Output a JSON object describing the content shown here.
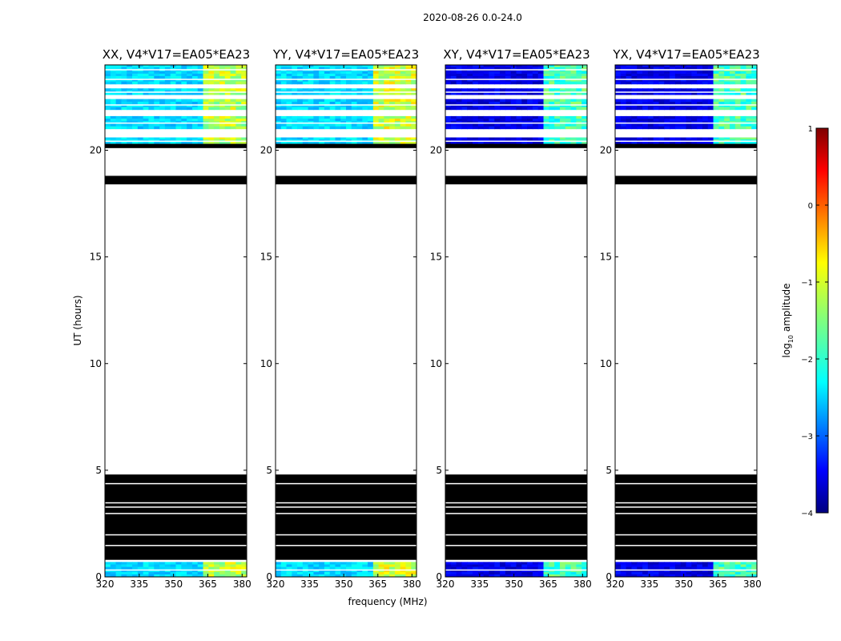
{
  "figure": {
    "suptitle": "2020-08-26 0.0-24.0",
    "ylabel": "UT (hours)",
    "xlabel": "frequency (MHz)",
    "colorbar": {
      "label_prefix": "log",
      "label_sub": "10",
      "label_suffix": " amplitude",
      "ticks": [
        "1",
        "0",
        "−1",
        "−2",
        "−3",
        "−4"
      ]
    },
    "colors": {
      "flagged": "#000000",
      "panel_border": "#000000",
      "background": "#ffffff"
    }
  },
  "chart_data": [
    {
      "type": "heatmap",
      "title": "XX, V4*V17=EA05*EA23",
      "xlabel": "frequency (MHz)",
      "ylabel": "UT (hours)",
      "xlim": [
        320,
        382
      ],
      "ylim": [
        0,
        24
      ],
      "x_ticks": [
        "320",
        "335",
        "350",
        "365",
        "380"
      ],
      "y_ticks": [
        "0",
        "5",
        "10",
        "15",
        "20"
      ],
      "colorbar_range": [
        -4,
        1
      ],
      "baseline_log10_amplitude": -2.3,
      "rfi_band_mhz": [
        363,
        382
      ],
      "rfi_log10_amplitude": -1.2,
      "observed_ut_blocks": [
        [
          0.0,
          0.7
        ],
        [
          20.3,
          20.6
        ],
        [
          21.0,
          21.6
        ],
        [
          21.9,
          22.4
        ],
        [
          22.6,
          22.9
        ],
        [
          23.1,
          23.6
        ],
        [
          23.6,
          24.0
        ]
      ],
      "flagged_ut_blocks": [
        [
          0.8,
          4.8
        ],
        [
          18.4,
          18.8
        ],
        [
          20.1,
          20.3
        ]
      ]
    },
    {
      "type": "heatmap",
      "title": "YY, V4*V17=EA05*EA23",
      "xlabel": "frequency (MHz)",
      "ylabel": "UT (hours)",
      "xlim": [
        320,
        382
      ],
      "ylim": [
        0,
        24
      ],
      "x_ticks": [
        "320",
        "335",
        "350",
        "365",
        "380"
      ],
      "y_ticks": [
        "0",
        "5",
        "10",
        "15",
        "20"
      ],
      "colorbar_range": [
        -4,
        1
      ],
      "baseline_log10_amplitude": -2.3,
      "rfi_band_mhz": [
        363,
        382
      ],
      "rfi_log10_amplitude": -1.1,
      "observed_ut_blocks": [
        [
          0.0,
          0.7
        ],
        [
          20.3,
          20.6
        ],
        [
          21.0,
          21.6
        ],
        [
          21.9,
          22.4
        ],
        [
          22.6,
          22.9
        ],
        [
          23.1,
          23.6
        ],
        [
          23.6,
          24.0
        ]
      ],
      "flagged_ut_blocks": [
        [
          0.8,
          4.8
        ],
        [
          18.4,
          18.8
        ],
        [
          20.1,
          20.3
        ]
      ]
    },
    {
      "type": "heatmap",
      "title": "XY, V4*V17=EA05*EA23",
      "xlabel": "frequency (MHz)",
      "ylabel": "UT (hours)",
      "xlim": [
        320,
        382
      ],
      "ylim": [
        0,
        24
      ],
      "x_ticks": [
        "320",
        "335",
        "350",
        "365",
        "380"
      ],
      "y_ticks": [
        "0",
        "5",
        "10",
        "15",
        "20"
      ],
      "colorbar_range": [
        -4,
        1
      ],
      "baseline_log10_amplitude": -3.5,
      "rfi_band_mhz": [
        363,
        382
      ],
      "rfi_log10_amplitude": -1.8,
      "observed_ut_blocks": [
        [
          0.0,
          0.7
        ],
        [
          20.3,
          20.6
        ],
        [
          21.0,
          21.6
        ],
        [
          21.9,
          22.4
        ],
        [
          22.6,
          22.9
        ],
        [
          23.1,
          23.6
        ],
        [
          23.6,
          24.0
        ]
      ],
      "flagged_ut_blocks": [
        [
          0.8,
          4.8
        ],
        [
          18.4,
          18.8
        ],
        [
          20.1,
          20.3
        ]
      ]
    },
    {
      "type": "heatmap",
      "title": "YX, V4*V17=EA05*EA23",
      "xlabel": "frequency (MHz)",
      "ylabel": "UT (hours)",
      "xlim": [
        320,
        382
      ],
      "ylim": [
        0,
        24
      ],
      "x_ticks": [
        "320",
        "335",
        "350",
        "365",
        "380"
      ],
      "y_ticks": [
        "0",
        "5",
        "10",
        "15",
        "20"
      ],
      "colorbar_range": [
        -4,
        1
      ],
      "baseline_log10_amplitude": -3.5,
      "rfi_band_mhz": [
        363,
        382
      ],
      "rfi_log10_amplitude": -1.8,
      "observed_ut_blocks": [
        [
          0.0,
          0.7
        ],
        [
          20.3,
          20.6
        ],
        [
          21.0,
          21.6
        ],
        [
          21.9,
          22.4
        ],
        [
          22.6,
          22.9
        ],
        [
          23.1,
          23.6
        ],
        [
          23.6,
          24.0
        ]
      ],
      "flagged_ut_blocks": [
        [
          0.8,
          4.8
        ],
        [
          18.4,
          18.8
        ],
        [
          20.1,
          20.3
        ]
      ]
    }
  ]
}
